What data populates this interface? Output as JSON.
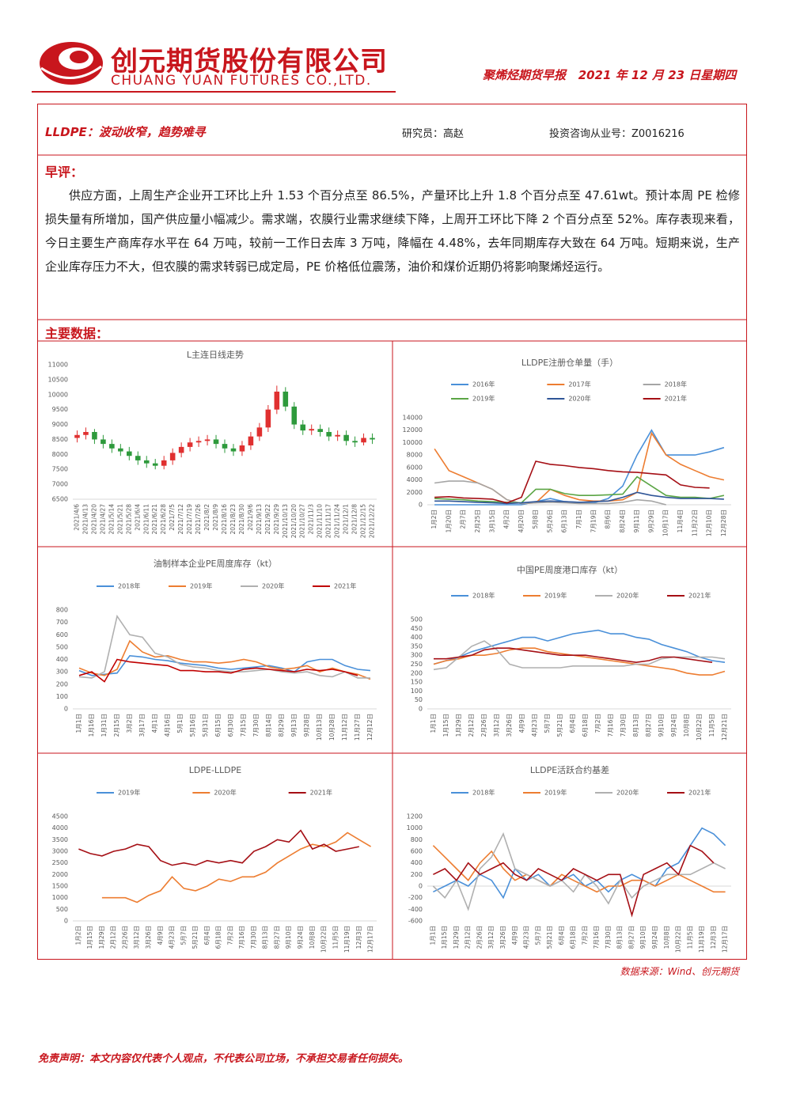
{
  "header": {
    "company_cn": "创元期货股份有限公司",
    "company_en": "CHUANG YUAN FUTURES CO.,LTD.",
    "report": "聚烯烃期货早报",
    "date": "2021 年 12 月 23 日星期四"
  },
  "article": {
    "title": "LLDPE：波动收窄，趋势难寻",
    "researcher": "研究员：高赵",
    "license": "投资咨询从业号：Z0016216",
    "comment_heading": "早评：",
    "body": "供应方面，上周生产企业开工环比上升 1.53 个百分点至 86.5%，产量环比上升 1.8 个百分点至 47.61wt。预计本周 PE 检修损失量有所增加，国产供应量小幅减少。需求端，农膜行业需求继续下降，上周开工环比下降 2 个百分点至 52%。库存表现来看，今日主要生产商库存水平在 64 万吨，较前一工作日去库 3 万吨，降幅在 4.48%，去年同期库存大致在 64 万吨。短期来说，生产企业库存压力不大，但农膜的需求转弱已成定局，PE 价格低位震荡，油价和煤价近期仍将影响聚烯烃运行。",
    "data_heading": "主要数据："
  },
  "chart_data": [
    {
      "type": "candlestick",
      "title": "L主连日线走势",
      "up_color": "#e03030",
      "down_color": "#2e9a3c",
      "categories": [
        "2021/4/6",
        "2021/4/13",
        "2021/4/20",
        "2021/4/27",
        "2021/5/14",
        "2021/5/21",
        "2021/5/28",
        "2021/6/4",
        "2021/6/11",
        "2021/6/21",
        "2021/6/28",
        "2021/7/5",
        "2021/7/12",
        "2021/7/19",
        "2021/7/26",
        "2021/8/2",
        "2021/8/9",
        "2021/8/16",
        "2021/8/23",
        "2021/8/30",
        "2021/9/6",
        "2021/9/13",
        "2021/9/22",
        "2021/9/29",
        "2021/10/13",
        "2021/10/20",
        "2021/10/27",
        "2021/11/3",
        "2021/11/10",
        "2021/11/17",
        "2021/11/24",
        "2021/12/1",
        "2021/12/8",
        "2021/12/15",
        "2021/12/22"
      ],
      "open": [
        8550,
        8650,
        8750,
        8500,
        8350,
        8200,
        8100,
        7950,
        7800,
        7700,
        7620,
        7800,
        8050,
        8250,
        8400,
        8450,
        8500,
        8350,
        8200,
        8100,
        8300,
        8600,
        8900,
        9500,
        10100,
        9600,
        9000,
        8800,
        8850,
        8750,
        8600,
        8650,
        8450,
        8400,
        8550
      ],
      "high": [
        8800,
        8900,
        8850,
        8650,
        8500,
        8350,
        8250,
        8100,
        7950,
        7850,
        7950,
        8200,
        8400,
        8550,
        8600,
        8650,
        8650,
        8500,
        8350,
        8450,
        8750,
        9050,
        9650,
        10300,
        10250,
        9750,
        9150,
        9000,
        9000,
        8900,
        8800,
        8800,
        8600,
        8700,
        8700
      ],
      "low": [
        8400,
        8500,
        8350,
        8200,
        8050,
        7950,
        7800,
        7650,
        7550,
        7500,
        7500,
        7650,
        7900,
        8100,
        8250,
        8300,
        8200,
        8050,
        7950,
        7950,
        8150,
        8450,
        8750,
        9350,
        9450,
        8850,
        8650,
        8650,
        8600,
        8450,
        8450,
        8300,
        8250,
        8300,
        8350
      ],
      "close": [
        8650,
        8750,
        8500,
        8350,
        8200,
        8100,
        7950,
        7800,
        7700,
        7620,
        7800,
        8050,
        8250,
        8400,
        8450,
        8500,
        8350,
        8200,
        8100,
        8300,
        8600,
        8900,
        9500,
        10100,
        9600,
        9000,
        8800,
        8850,
        8750,
        8600,
        8650,
        8450,
        8400,
        8550,
        8500
      ],
      "ylim": [
        6500,
        11000
      ],
      "yticks": [
        6500,
        7000,
        7500,
        8000,
        8500,
        9000,
        9500,
        10000,
        10500,
        11000
      ]
    },
    {
      "type": "line",
      "title": "LLDPE注册仓单量（手）",
      "legend": "top",
      "categories": [
        "1月2日",
        "1月20日",
        "2月7日",
        "2月25日",
        "3月15日",
        "4月2日",
        "4月20日",
        "5月8日",
        "5月26日",
        "6月13日",
        "7月1日",
        "7月19日",
        "8月6日",
        "8月24日",
        "9月11日",
        "9月29日",
        "10月17日",
        "11月4日",
        "11月22日",
        "12月10日",
        "12月28日"
      ],
      "series": [
        {
          "name": "2016年",
          "color": "#4a90d9",
          "values": [
            0,
            0,
            0,
            0,
            0,
            0,
            0,
            500,
            1000,
            500,
            400,
            300,
            1000,
            3000,
            8000,
            12000,
            8000,
            8000,
            8000,
            8500,
            9200
          ]
        },
        {
          "name": "2017年",
          "color": "#ed7d31",
          "values": [
            9000,
            5500,
            4500,
            3500,
            2500,
            800,
            200,
            300,
            2500,
            1500,
            800,
            600,
            600,
            800,
            2000,
            11500,
            8000,
            6500,
            5500,
            4500,
            4000
          ]
        },
        {
          "name": "2018年",
          "color": "#a5a5a5",
          "values": [
            3500,
            3800,
            3800,
            3500,
            2500,
            800,
            200,
            300,
            400,
            300,
            200,
            200,
            200,
            400,
            800,
            600,
            0,
            null,
            null,
            null,
            null
          ]
        },
        {
          "name": "2019年",
          "color": "#5ba545",
          "values": [
            1000,
            900,
            800,
            600,
            500,
            400,
            300,
            2500,
            2500,
            1800,
            1500,
            1500,
            1600,
            1700,
            4500,
            3000,
            1500,
            1200,
            1200,
            1000,
            1500
          ]
        },
        {
          "name": "2020年",
          "color": "#2f5597",
          "values": [
            600,
            600,
            500,
            400,
            300,
            200,
            300,
            500,
            600,
            500,
            400,
            500,
            600,
            1200,
            2000,
            1500,
            1200,
            1000,
            1000,
            1000,
            900
          ]
        },
        {
          "name": "2021年",
          "color": "#a50f15",
          "values": [
            1200,
            1300,
            1100,
            1000,
            900,
            300,
            1200,
            7000,
            6500,
            6300,
            6000,
            5800,
            5500,
            5300,
            5200,
            5000,
            4800,
            3200,
            2800,
            2700,
            null
          ]
        }
      ],
      "ylim": [
        0,
        14000
      ],
      "yticks": [
        0,
        2000,
        4000,
        6000,
        8000,
        10000,
        12000,
        14000
      ]
    },
    {
      "type": "line",
      "title": "油制样本企业PE周度库存（kt）",
      "legend": "top",
      "categories": [
        "1月1日",
        "1月16日",
        "1月31日",
        "2月15日",
        "3月2日",
        "3月17日",
        "4月1日",
        "4月16日",
        "5月1日",
        "5月16日",
        "5月31日",
        "6月15日",
        "6月30日",
        "7月15日",
        "7月30日",
        "8月14日",
        "8月29日",
        "9月13日",
        "9月28日",
        "10月13日",
        "10月28日",
        "11月12日",
        "11月27日",
        "12月12日"
      ],
      "series": [
        {
          "name": "2018年",
          "color": "#4a90d9",
          "values": [
            310,
            270,
            280,
            290,
            430,
            420,
            400,
            390,
            370,
            360,
            350,
            330,
            320,
            330,
            340,
            350,
            330,
            300,
            380,
            400,
            400,
            350,
            320,
            310
          ]
        },
        {
          "name": "2019年",
          "color": "#ed7d31",
          "values": [
            330,
            290,
            270,
            320,
            550,
            460,
            420,
            430,
            400,
            380,
            380,
            370,
            380,
            400,
            380,
            340,
            320,
            330,
            350,
            300,
            330,
            300,
            280,
            240
          ]
        },
        {
          "name": "2020年",
          "color": "#b0b0b0",
          "values": [
            260,
            250,
            300,
            750,
            600,
            580,
            450,
            420,
            360,
            340,
            330,
            310,
            300,
            300,
            310,
            320,
            300,
            290,
            300,
            270,
            260,
            300,
            250,
            250
          ]
        },
        {
          "name": "2021年",
          "color": "#c00000",
          "values": [
            270,
            300,
            220,
            400,
            380,
            370,
            360,
            350,
            310,
            310,
            300,
            300,
            290,
            320,
            330,
            320,
            310,
            300,
            320,
            310,
            320,
            300,
            270,
            null
          ]
        }
      ],
      "ylim": [
        0,
        800
      ],
      "yticks": [
        0,
        100,
        200,
        300,
        400,
        500,
        600,
        700,
        800
      ]
    },
    {
      "type": "line",
      "title": "中国PE周度港口库存（kt）",
      "legend": "top",
      "categories": [
        "1月1日",
        "1月15日",
        "1月29日",
        "2月12日",
        "2月26日",
        "3月12日",
        "3月26日",
        "4月9日",
        "4月23日",
        "5月7日",
        "5月21日",
        "6月4日",
        "6月18日",
        "7月2日",
        "7月16日",
        "7月30日",
        "8月13日",
        "8月27日",
        "9月10日",
        "9月24日",
        "10月8日",
        "10月22日",
        "11月5日",
        "12月21日"
      ],
      "series": [
        {
          "name": "2018年",
          "color": "#4a90d9",
          "values": [
            250,
            270,
            290,
            320,
            340,
            360,
            380,
            400,
            400,
            380,
            400,
            420,
            430,
            440,
            420,
            420,
            400,
            390,
            360,
            340,
            320,
            290,
            270,
            260
          ]
        },
        {
          "name": "2019年",
          "color": "#ed7d31",
          "values": [
            250,
            270,
            280,
            300,
            300,
            310,
            330,
            340,
            340,
            320,
            310,
            300,
            290,
            280,
            270,
            260,
            250,
            240,
            230,
            220,
            200,
            190,
            190,
            210
          ]
        },
        {
          "name": "2020年",
          "color": "#b0b0b0",
          "values": [
            220,
            230,
            290,
            350,
            380,
            330,
            250,
            230,
            230,
            230,
            230,
            240,
            240,
            240,
            240,
            240,
            250,
            250,
            280,
            290,
            290,
            290,
            290,
            280
          ]
        },
        {
          "name": "2021年",
          "color": "#a50f15",
          "values": [
            280,
            280,
            290,
            300,
            330,
            340,
            340,
            330,
            320,
            310,
            300,
            300,
            300,
            290,
            280,
            270,
            260,
            270,
            290,
            290,
            280,
            270,
            260,
            null
          ]
        }
      ],
      "ylim": [
        0,
        500
      ],
      "yticks": [
        0,
        50,
        100,
        150,
        200,
        250,
        300,
        350,
        400,
        450,
        500
      ]
    },
    {
      "type": "line",
      "title": "LDPE-LLDPE",
      "legend": "top",
      "categories": [
        "1月2日",
        "1月15日",
        "1月29日",
        "2月12日",
        "2月26日",
        "3月12日",
        "3月26日",
        "4月9日",
        "4月23日",
        "5月7日",
        "5月21日",
        "6月4日",
        "6月18日",
        "7月2日",
        "7月16日",
        "7月30日",
        "8月13日",
        "8月27日",
        "9月10日",
        "9月24日",
        "10月8日",
        "10月22日",
        "11月5日",
        "11月19日",
        "12月3日",
        "12月17日"
      ],
      "series": [
        {
          "name": "2019年",
          "color": "#4a90d9",
          "values": [
            null,
            null,
            null,
            null,
            null,
            null,
            null,
            null,
            null,
            null,
            null,
            null,
            null,
            null,
            null,
            null,
            null,
            null,
            null,
            null,
            null,
            null,
            null,
            null,
            null,
            null
          ]
        },
        {
          "name": "2020年",
          "color": "#ed7d31",
          "values": [
            null,
            null,
            1000,
            1000,
            1000,
            800,
            1100,
            1300,
            1900,
            1400,
            1300,
            1500,
            1800,
            1700,
            1900,
            1900,
            2100,
            2500,
            2800,
            3100,
            3300,
            3200,
            3400,
            3800,
            3500,
            3200
          ]
        },
        {
          "name": "2021年",
          "color": "#a50f15",
          "values": [
            3100,
            2900,
            2800,
            3000,
            3100,
            3300,
            3200,
            2600,
            2400,
            2500,
            2400,
            2600,
            2500,
            2600,
            2500,
            3000,
            3200,
            3500,
            3400,
            3900,
            3100,
            3300,
            3000,
            3100,
            3200,
            null
          ]
        }
      ],
      "ylim": [
        0,
        4500
      ],
      "yticks": [
        0,
        500,
        1000,
        1500,
        2000,
        2500,
        3000,
        3500,
        4000,
        4500
      ]
    },
    {
      "type": "line",
      "title": "LLDPE活跃合约基差",
      "legend": "top",
      "categories": [
        "1月1日",
        "1月15日",
        "1月29日",
        "2月12日",
        "2月26日",
        "3月12日",
        "3月26日",
        "4月9日",
        "4月23日",
        "5月7日",
        "5月21日",
        "6月4日",
        "6月18日",
        "7月2日",
        "7月16日",
        "7月30日",
        "8月13日",
        "8月27日",
        "9月10日",
        "9月24日",
        "10月8日",
        "10月22日",
        "11月5日",
        "11月19日",
        "12月3日",
        "12月17日"
      ],
      "series": [
        {
          "name": "2018年",
          "color": "#4a90d9",
          "values": [
            -100,
            0,
            100,
            0,
            200,
            100,
            -200,
            300,
            100,
            200,
            0,
            100,
            200,
            0,
            100,
            -100,
            100,
            200,
            100,
            0,
            300,
            400,
            700,
            1000,
            900,
            700
          ]
        },
        {
          "name": "2019年",
          "color": "#ed7d31",
          "values": [
            700,
            500,
            300,
            100,
            400,
            600,
            300,
            100,
            200,
            100,
            0,
            200,
            100,
            0,
            -100,
            0,
            0,
            100,
            100,
            0,
            100,
            200,
            100,
            0,
            -100,
            -100
          ]
        },
        {
          "name": "2020年",
          "color": "#b0b0b0",
          "values": [
            0,
            -200,
            100,
            -400,
            300,
            500,
            900,
            300,
            200,
            100,
            0,
            100,
            -100,
            200,
            0,
            -300,
            100,
            -200,
            0,
            100,
            200,
            200,
            200,
            300,
            400,
            300
          ]
        },
        {
          "name": "2021年",
          "color": "#a50f15",
          "values": [
            200,
            300,
            100,
            400,
            200,
            300,
            400,
            200,
            100,
            300,
            200,
            100,
            300,
            200,
            100,
            200,
            200,
            -500,
            200,
            300,
            400,
            200,
            700,
            600,
            400,
            null
          ]
        }
      ],
      "ylim": [
        -600,
        1200
      ],
      "yticks": [
        -600,
        -400,
        -200,
        0,
        200,
        400,
        600,
        800,
        1000,
        1200
      ]
    }
  ],
  "source": "数据来源：Wind、创元期货",
  "disclaimer": "免责声明：本文内容仅代表个人观点，不代表公司立场，不承担交易者任何损失。"
}
